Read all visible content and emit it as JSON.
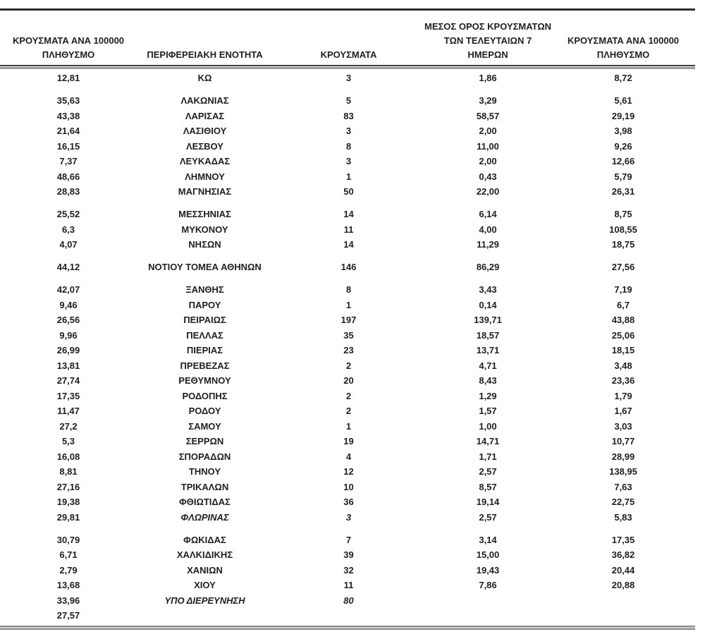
{
  "colors": {
    "text": "#1f1f1f",
    "top_rule": "#2f2f2f",
    "header_rule_dark": "#3c3c3c",
    "header_rule_gray": "#9a9a9a",
    "bottom_rule_dark": "#8c8c8c",
    "bottom_rule_light": "#cfcfcf"
  },
  "table": {
    "headers": [
      {
        "lines": [
          "ΚΡΟΥΣΜΑΤΑ ΑΝΑ 100000",
          "ΠΛΗΘΥΣΜΟ"
        ]
      },
      {
        "lines": [
          "ΠΕΡΙΦΕΡΕΙΑΚΗ ΕΝΟΤΗΤΑ"
        ]
      },
      {
        "lines": [
          "ΚΡΟΥΣΜΑΤΑ"
        ]
      },
      {
        "lines": [
          "ΜΕΣΟΣ ΟΡΟΣ ΚΡΟΥΣΜΑΤΩΝ",
          "ΤΩΝ ΤΕΛΕΥΤΑΙΩΝ 7",
          "ΗΜΕΡΩΝ"
        ]
      },
      {
        "lines": [
          "ΚΡΟΥΣΜΑΤΑ ΑΝΑ 100000",
          "ΠΛΗΘΥΣΜΟ"
        ]
      }
    ],
    "rows": [
      {
        "rate_total": "12,81",
        "region": "ΚΩ",
        "cases": "3",
        "avg7": "1,86",
        "rate7": "8,72"
      },
      {
        "gap_before": true,
        "rate_total": "35,63",
        "region": "ΛΑΚΩΝΙΑΣ",
        "cases": "5",
        "avg7": "3,29",
        "rate7": "5,61"
      },
      {
        "rate_total": "43,38",
        "region": "ΛΑΡΙΣΑΣ",
        "cases": "83",
        "avg7": "58,57",
        "rate7": "29,19"
      },
      {
        "rate_total": "21,64",
        "region": "ΛΑΣΙΘΙΟΥ",
        "cases": "3",
        "avg7": "2,00",
        "rate7": "3,98"
      },
      {
        "rate_total": "16,15",
        "region": "ΛΕΣΒΟΥ",
        "cases": "8",
        "avg7": "11,00",
        "rate7": "9,26"
      },
      {
        "rate_total": "7,37",
        "region": "ΛΕΥΚΑΔΑΣ",
        "cases": "3",
        "avg7": "2,00",
        "rate7": "12,66"
      },
      {
        "rate_total": "48,66",
        "region": "ΛΗΜΝΟΥ",
        "cases": "1",
        "avg7": "0,43",
        "rate7": "5,79"
      },
      {
        "rate_total": "28,83",
        "region": "ΜΑΓΝΗΣΙΑΣ",
        "cases": "50",
        "avg7": "22,00",
        "rate7": "26,31"
      },
      {
        "gap_before": true,
        "rate_total": "25,52",
        "region": "ΜΕΣΣΗΝΙΑΣ",
        "cases": "14",
        "avg7": "6,14",
        "rate7": "8,75"
      },
      {
        "rate_total": "6,3",
        "region": "ΜΥΚΟΝΟΥ",
        "cases": "11",
        "avg7": "4,00",
        "rate7": "108,55"
      },
      {
        "rate_total": "4,07",
        "region": "ΝΗΣΩΝ",
        "cases": "14",
        "avg7": "11,29",
        "rate7": "18,75"
      },
      {
        "gap_before": true,
        "rate_total": "44,12",
        "region": "ΝΟΤΙΟΥ ΤΟΜΕΑ ΑΘΗΝΩΝ",
        "cases": "146",
        "avg7": "86,29",
        "rate7": "27,56"
      },
      {
        "gap_before": true,
        "rate_total": "42,07",
        "region": "ΞΑΝΘΗΣ",
        "cases": "8",
        "avg7": "3,43",
        "rate7": "7,19"
      },
      {
        "rate_total": "9,46",
        "region": "ΠΑΡΟΥ",
        "cases": "1",
        "avg7": "0,14",
        "rate7": "6,7"
      },
      {
        "rate_total": "26,56",
        "region": "ΠΕΙΡΑΙΩΣ",
        "cases": "197",
        "avg7": "139,71",
        "rate7": "43,88"
      },
      {
        "rate_total": "9,96",
        "region": "ΠΕΛΛΑΣ",
        "cases": "35",
        "avg7": "18,57",
        "rate7": "25,06"
      },
      {
        "rate_total": "26,99",
        "region": "ΠΙΕΡΙΑΣ",
        "cases": "23",
        "avg7": "13,71",
        "rate7": "18,15"
      },
      {
        "rate_total": "13,81",
        "region": "ΠΡΕΒΕΖΑΣ",
        "cases": "2",
        "avg7": "4,71",
        "rate7": "3,48"
      },
      {
        "rate_total": "27,74",
        "region": "ΡΕΘΥΜΝΟΥ",
        "cases": "20",
        "avg7": "8,43",
        "rate7": "23,36"
      },
      {
        "rate_total": "17,35",
        "region": "ΡΟΔΟΠΗΣ",
        "cases": "2",
        "avg7": "1,29",
        "rate7": "1,79"
      },
      {
        "rate_total": "11,47",
        "region": "ΡΟΔΟΥ",
        "cases": "2",
        "avg7": "1,57",
        "rate7": "1,67"
      },
      {
        "rate_total": "27,2",
        "region": "ΣΑΜΟΥ",
        "cases": "1",
        "avg7": "1,00",
        "rate7": "3,03"
      },
      {
        "rate_total": "5,3",
        "region": "ΣΕΡΡΩΝ",
        "cases": "19",
        "avg7": "14,71",
        "rate7": "10,77"
      },
      {
        "rate_total": "16,08",
        "region": "ΣΠΟΡΑΔΩΝ",
        "cases": "4",
        "avg7": "1,71",
        "rate7": "28,99"
      },
      {
        "rate_total": "8,81",
        "region": "ΤΗΝΟΥ",
        "cases": "12",
        "avg7": "2,57",
        "rate7": "138,95"
      },
      {
        "rate_total": "27,16",
        "region": "ΤΡΙΚΑΛΩΝ",
        "cases": "10",
        "avg7": "8,57",
        "rate7": "7,63"
      },
      {
        "rate_total": "19,38",
        "region": "ΦΘΙΩΤΙΔΑΣ",
        "cases": "36",
        "avg7": "19,14",
        "rate7": "22,75"
      },
      {
        "rate_total": "29,81",
        "region": "ΦΛΩΡΙΝΑΣ",
        "cases": "3",
        "avg7": "2,57",
        "rate7": "5,83",
        "italic_region": true,
        "italic_cases": true
      },
      {
        "gap_before": true,
        "rate_total": "30,79",
        "region": "ΦΩΚΙΔΑΣ",
        "cases": "7",
        "avg7": "3,14",
        "rate7": "17,35"
      },
      {
        "rate_total": "6,71",
        "region": "ΧΑΛΚΙΔΙΚΗΣ",
        "cases": "39",
        "avg7": "15,00",
        "rate7": "36,82"
      },
      {
        "rate_total": "2,79",
        "region": "ΧΑΝΙΩΝ",
        "cases": "32",
        "avg7": "19,43",
        "rate7": "20,44"
      },
      {
        "rate_total": "13,68",
        "region": "ΧΙΟΥ",
        "cases": "11",
        "avg7": "7,86",
        "rate7": "20,88"
      },
      {
        "rate_total": "33,96",
        "region": "ΥΠΟ ΔΙΕΡΕΥΝΗΣΗ",
        "cases": "80",
        "avg7": "",
        "rate7": "",
        "italic_region": true,
        "italic_cases": true
      },
      {
        "rate_total": "27,57",
        "region": "",
        "cases": "",
        "avg7": "",
        "rate7": ""
      }
    ]
  }
}
